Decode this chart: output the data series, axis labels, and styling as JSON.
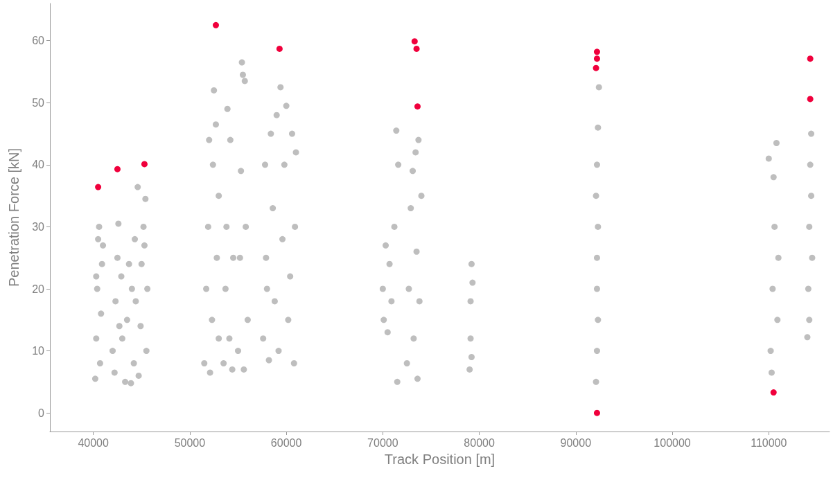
{
  "chart_data": {
    "type": "scatter",
    "xlabel": "Track Position [m]",
    "ylabel": "Penetration Force [kN]",
    "xlim": [
      35500,
      116300
    ],
    "xticks": [
      40000,
      50000,
      60000,
      70000,
      80000,
      90000,
      100000,
      110000
    ],
    "ylim": [
      -3,
      66
    ],
    "yticks": [
      0,
      10,
      20,
      30,
      40,
      50,
      60
    ],
    "grid": false,
    "marker": "circle",
    "series": [
      {
        "color": "#bebebe",
        "x": [
          40200,
          40300,
          40400,
          40500,
          40600,
          40700,
          40800,
          40900,
          41000,
          40300,
          42000,
          42200,
          42300,
          42500,
          42600,
          42700,
          42900,
          43000,
          43300,
          43500,
          43700,
          43900,
          44000,
          44200,
          44400,
          44600,
          44300,
          44700,
          44900,
          45000,
          45200,
          45400,
          45500,
          45600,
          45300,
          51500,
          51700,
          51900,
          52000,
          52100,
          52300,
          52400,
          52500,
          52700,
          52800,
          53000,
          53000,
          53500,
          53700,
          53800,
          53900,
          54100,
          54200,
          54400,
          54500,
          55000,
          55200,
          55300,
          55400,
          55500,
          55600,
          55700,
          55800,
          56000,
          57600,
          57800,
          57900,
          58200,
          58400,
          58600,
          58800,
          59000,
          59200,
          59400,
          59600,
          59800,
          60000,
          60200,
          60400,
          60600,
          60800,
          61000,
          60900,
          58000,
          70000,
          70100,
          70300,
          70500,
          70700,
          70900,
          71400,
          71500,
          71600,
          71200,
          72500,
          72700,
          72900,
          73100,
          73200,
          73400,
          73500,
          73600,
          73700,
          73800,
          74000,
          79000,
          79100,
          79100,
          79200,
          79300,
          79200,
          92100,
          92200,
          92200,
          92300,
          92200,
          92300,
          92400,
          92100,
          92300,
          92200,
          110000,
          110200,
          110300,
          110400,
          110500,
          110600,
          110800,
          110900,
          111000,
          114000,
          114100,
          114200,
          114300,
          114400,
          114500,
          114200,
          114400
        ],
        "values": [
          5.5,
          12,
          20,
          28,
          30,
          8,
          16,
          24,
          27,
          22,
          10,
          6.5,
          18,
          25,
          30.5,
          14,
          22,
          12,
          5,
          15,
          24,
          4.8,
          20,
          8,
          18,
          36.4,
          28,
          6,
          14,
          24,
          30,
          34.5,
          10,
          20,
          27,
          8,
          20,
          30,
          44,
          6.5,
          15,
          40,
          52,
          46.5,
          25,
          12,
          35,
          8,
          20,
          30,
          49,
          12,
          44,
          7,
          25,
          10,
          25,
          39,
          56.5,
          54.5,
          7,
          53.5,
          30,
          15,
          12,
          40,
          25,
          8.5,
          45,
          33,
          18,
          48,
          10,
          52.5,
          28,
          40,
          49.5,
          15,
          22,
          45,
          8,
          42,
          30,
          20,
          20,
          15,
          27,
          13,
          24,
          18,
          45.5,
          5,
          40,
          30,
          8,
          20,
          33,
          39,
          12,
          42,
          26,
          5.5,
          44,
          18,
          35,
          7,
          12,
          18,
          24,
          21,
          9,
          5,
          10,
          20,
          30,
          40,
          46,
          52.5,
          35,
          15,
          25,
          41,
          10,
          6.5,
          20,
          38,
          30,
          43.5,
          15,
          25,
          12.2,
          20,
          30,
          40,
          45,
          25,
          15,
          35
        ]
      },
      {
        "color": "#f0003c",
        "x": [
          40500,
          42500,
          45300,
          52700,
          59300,
          73300,
          73500,
          73600,
          92200,
          92200,
          92100,
          92200,
          110500,
          114300,
          114300
        ],
        "values": [
          36.4,
          39.3,
          40.1,
          62.5,
          58.7,
          59.9,
          58.7,
          49.4,
          58.2,
          57.1,
          55.6,
          0,
          3.3,
          57.1,
          50.6
        ]
      }
    ]
  }
}
